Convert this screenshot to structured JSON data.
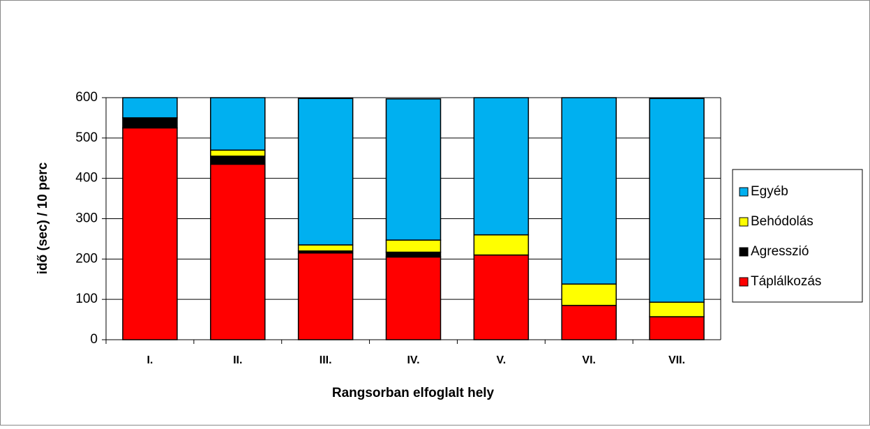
{
  "chart_data": {
    "type": "stacked_bar",
    "y_axis_label": "idő (sec) / 10 perc",
    "x_axis_label": "Rangsorban elfoglalt hely",
    "categories": [
      "I.",
      "II.",
      "III.",
      "IV.",
      "V.",
      "VI.",
      "VII."
    ],
    "series": [
      {
        "name": "Táplálkozás",
        "color": "#ff0000",
        "values": [
          525,
          435,
          215,
          205,
          210,
          85,
          57
        ]
      },
      {
        "name": "Agresszió",
        "color": "#000000",
        "values": [
          25,
          20,
          5,
          12,
          0,
          0,
          0
        ]
      },
      {
        "name": "Behódolás",
        "color": "#ffff00",
        "values": [
          0,
          15,
          15,
          30,
          50,
          53,
          36
        ]
      },
      {
        "name": "Egyéb",
        "color": "#00b0f0",
        "values": [
          50,
          130,
          363,
          350,
          340,
          462,
          505
        ]
      }
    ],
    "ylim": [
      0,
      600
    ],
    "yticks": [
      0,
      100,
      200,
      300,
      400,
      500,
      600
    ],
    "grid": true,
    "legend": "right"
  }
}
